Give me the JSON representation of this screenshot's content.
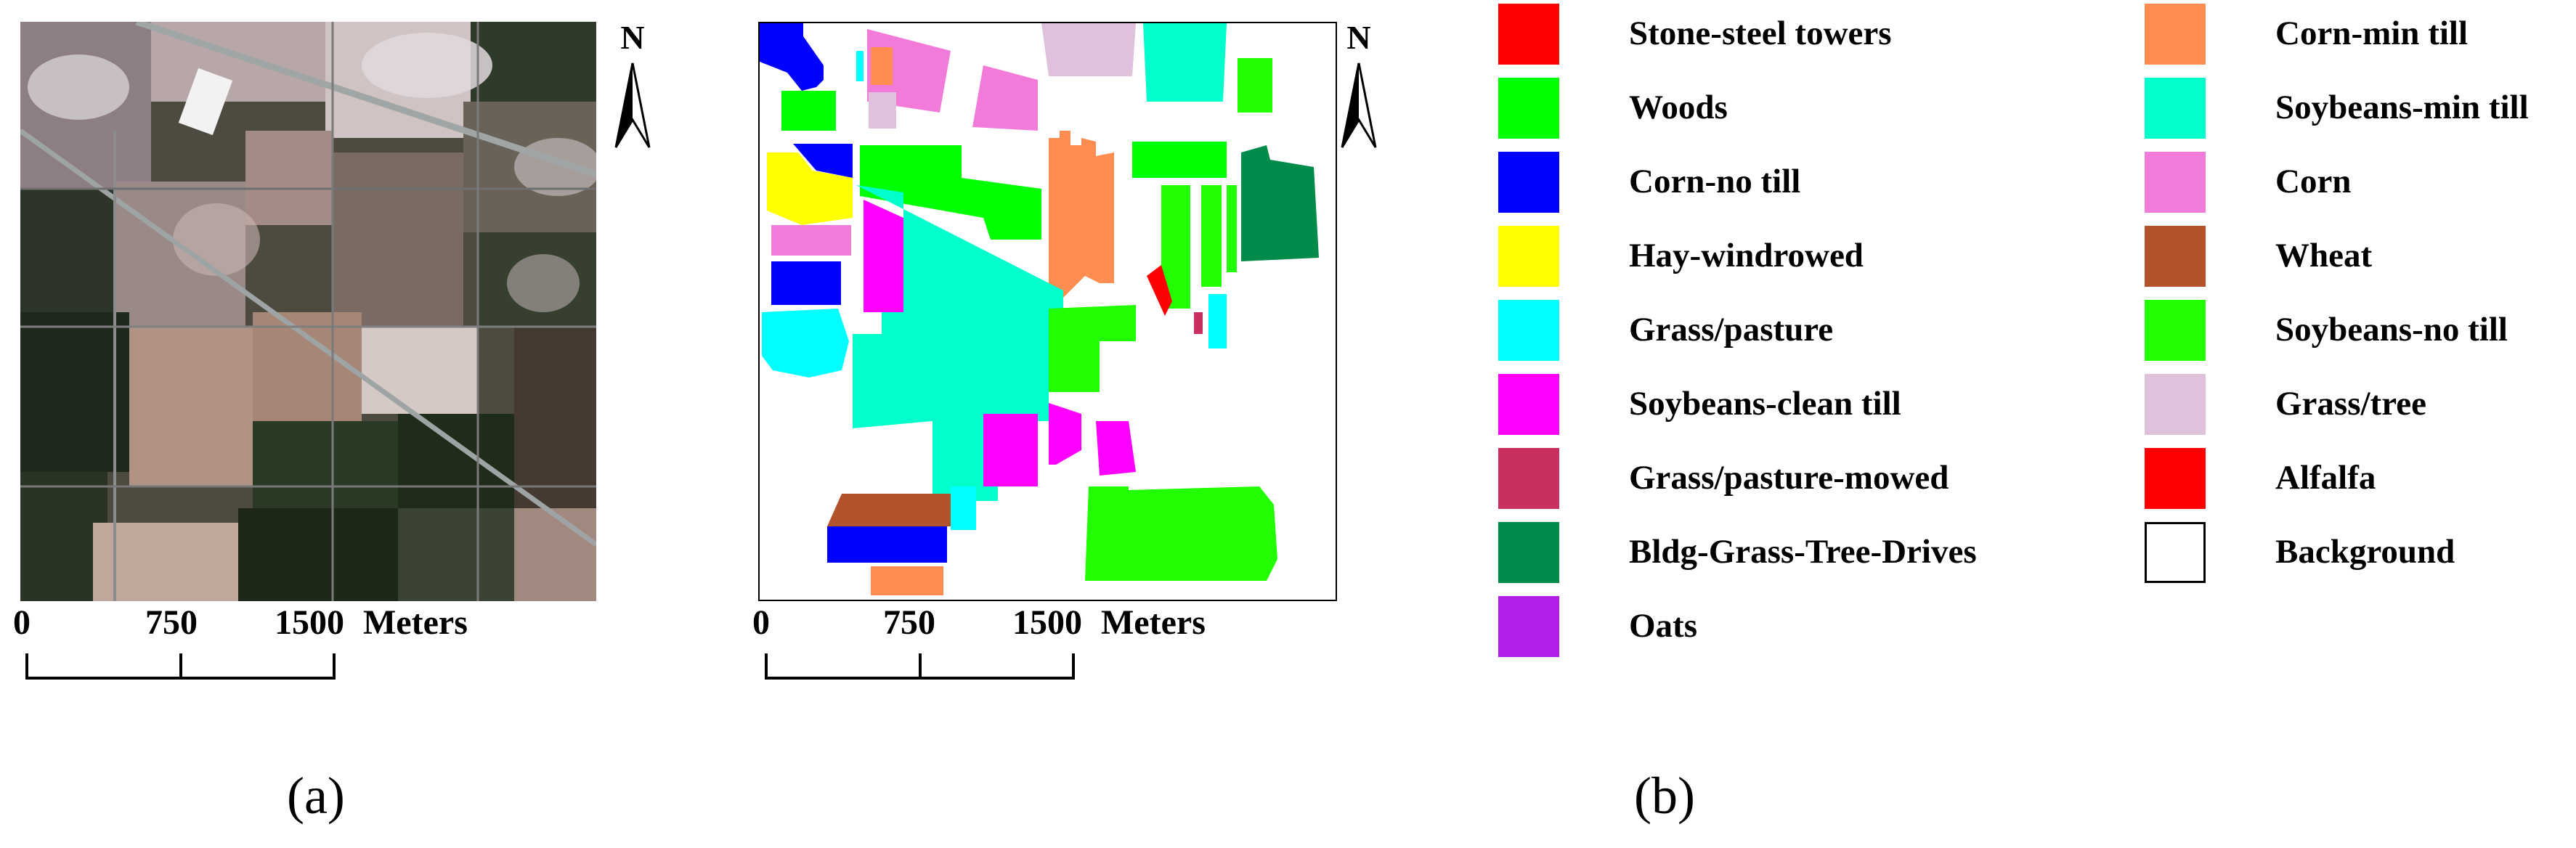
{
  "panels": [
    {
      "label": "(a)",
      "north_label": "N",
      "scale": {
        "ticks": [
          "0",
          "750",
          "1500"
        ],
        "unit": "Meters"
      }
    },
    {
      "label": "(b)",
      "north_label": "N",
      "scale": {
        "ticks": [
          "0",
          "750",
          "1500"
        ],
        "unit": "Meters"
      }
    }
  ],
  "legend": {
    "column1": [
      {
        "name": "Stone-steel towers",
        "color": "#ff0000"
      },
      {
        "name": "Woods",
        "color": "#00ff00"
      },
      {
        "name": "Corn-no till",
        "color": "#0000ff"
      },
      {
        "name": "Hay-windrowed",
        "color": "#ffff00"
      },
      {
        "name": "Grass/pasture",
        "color": "#00ffff"
      },
      {
        "name": "Soybeans-clean till",
        "color": "#ff00ff"
      },
      {
        "name": "Grass/pasture-mowed",
        "color": "#c9305f"
      },
      {
        "name": "Bldg-Grass-Tree-Drives",
        "color": "#008b4b"
      },
      {
        "name": "Oats",
        "color": "#b21fe8"
      }
    ],
    "column2": [
      {
        "name": "Corn-min till",
        "color": "#ff8c50"
      },
      {
        "name": "Soybeans-min till",
        "color": "#00ffcc"
      },
      {
        "name": "Corn",
        "color": "#f27bd9"
      },
      {
        "name": "Wheat",
        "color": "#b3532b"
      },
      {
        "name": "Soybeans-no till",
        "color": "#22ff00"
      },
      {
        "name": "Grass/tree",
        "color": "#dfc1dc"
      },
      {
        "name": "Alfalfa",
        "color": "#ff0000"
      },
      {
        "name": "Background",
        "color": "#ffffff"
      }
    ]
  }
}
